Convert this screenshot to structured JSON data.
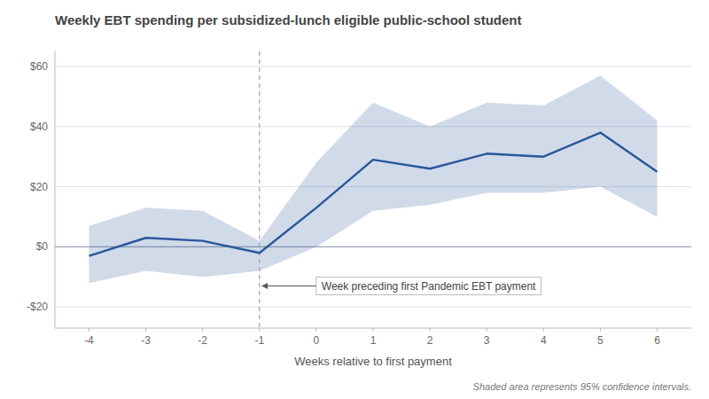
{
  "chart_data": {
    "type": "line",
    "title": "Weekly EBT spending per subsidized-lunch eligible public-school student",
    "x_label": "Weeks relative to first payment",
    "footnote": "Shaded area represents 95% confidence intervals.",
    "x": [
      -4,
      -3,
      -2,
      -1,
      0,
      1,
      2,
      3,
      4,
      5,
      6
    ],
    "values": [
      -3,
      3,
      2,
      -2,
      13,
      29,
      26,
      31,
      30,
      38,
      25
    ],
    "ci_upper": [
      7,
      13,
      12,
      2,
      28,
      48,
      40,
      48,
      47,
      57,
      42
    ],
    "ci_lower": [
      -12,
      -8,
      -10,
      -8,
      0,
      12,
      14,
      18,
      18,
      20,
      10
    ],
    "color": "#2a579a",
    "xlim": [
      -4.6,
      6.6
    ],
    "ylim": [
      -27,
      65
    ],
    "xticks": [
      -4,
      -3,
      -2,
      -1,
      0,
      1,
      2,
      3,
      4,
      5,
      6
    ],
    "yticks": [
      {
        "value": -20,
        "label": "-$20"
      },
      {
        "value": 0,
        "label": "$0"
      },
      {
        "value": 20,
        "label": "$20"
      },
      {
        "value": 40,
        "label": "$40"
      },
      {
        "value": 60,
        "label": "$60"
      }
    ],
    "grid": true,
    "vline": -1,
    "annotations": [
      {
        "text": "Week preceding first Pandemic EBT payment",
        "x": -1,
        "y": -13
      }
    ]
  }
}
